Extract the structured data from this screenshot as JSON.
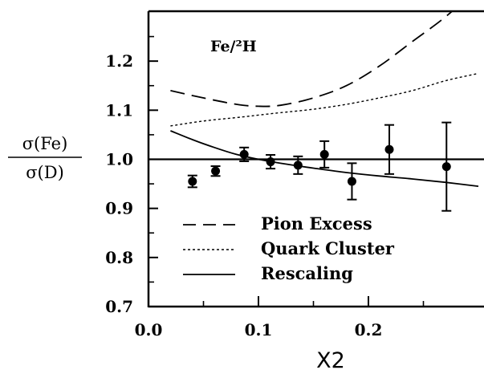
{
  "chart_data": {
    "type": "scatter",
    "title": "",
    "annotation": "Fe/²H",
    "ylabel_numerator": "σ(Fe)",
    "ylabel_denominator": "σ(D)",
    "xlabel": "X2",
    "xlim": [
      0.0,
      0.3
    ],
    "ylim": [
      0.7,
      1.3
    ],
    "xticks": [
      0.0,
      0.1,
      0.2
    ],
    "xtick_labels": [
      "0.0",
      "0.1",
      "0.2"
    ],
    "yticks": [
      0.7,
      0.8,
      0.9,
      1.0,
      1.1,
      1.2
    ],
    "ytick_labels": [
      "0.7",
      "0.8",
      "0.9",
      "1.0",
      "1.1",
      "1.2"
    ],
    "reference_line": 1.0,
    "points": [
      {
        "x": 0.04,
        "y": 0.955,
        "err": 0.012
      },
      {
        "x": 0.061,
        "y": 0.976,
        "err": 0.01
      },
      {
        "x": 0.087,
        "y": 1.01,
        "err": 0.014
      },
      {
        "x": 0.111,
        "y": 0.995,
        "err": 0.014
      },
      {
        "x": 0.136,
        "y": 0.988,
        "err": 0.018
      },
      {
        "x": 0.16,
        "y": 1.01,
        "err": 0.027
      },
      {
        "x": 0.185,
        "y": 0.955,
        "err": 0.037
      },
      {
        "x": 0.219,
        "y": 1.02,
        "err": 0.05
      },
      {
        "x": 0.271,
        "y": 0.985,
        "err": 0.09
      }
    ],
    "series": [
      {
        "name": "Pion Excess",
        "style": "dashed",
        "x": [
          0.02,
          0.05,
          0.08,
          0.1,
          0.12,
          0.15,
          0.18,
          0.21,
          0.24,
          0.27,
          0.3
        ],
        "y": [
          1.14,
          1.125,
          1.112,
          1.108,
          1.11,
          1.125,
          1.15,
          1.19,
          1.24,
          1.29,
          1.35
        ]
      },
      {
        "name": "Quark Cluster",
        "style": "dotted",
        "x": [
          0.02,
          0.05,
          0.08,
          0.1,
          0.12,
          0.15,
          0.18,
          0.21,
          0.24,
          0.27,
          0.3
        ],
        "y": [
          1.068,
          1.078,
          1.085,
          1.09,
          1.095,
          1.102,
          1.112,
          1.125,
          1.14,
          1.16,
          1.175
        ]
      },
      {
        "name": "Rescaling",
        "style": "solid",
        "x": [
          0.02,
          0.04,
          0.06,
          0.08,
          0.1,
          0.12,
          0.15,
          0.18,
          0.21,
          0.24,
          0.27,
          0.3
        ],
        "y": [
          1.058,
          1.04,
          1.024,
          1.01,
          1.0,
          0.992,
          0.982,
          0.973,
          0.966,
          0.96,
          0.953,
          0.945
        ]
      }
    ],
    "legend": {
      "placement": "bottom-left",
      "entries": [
        "Pion Excess",
        "Quark Cluster",
        "Rescaling"
      ]
    },
    "grid": false
  }
}
